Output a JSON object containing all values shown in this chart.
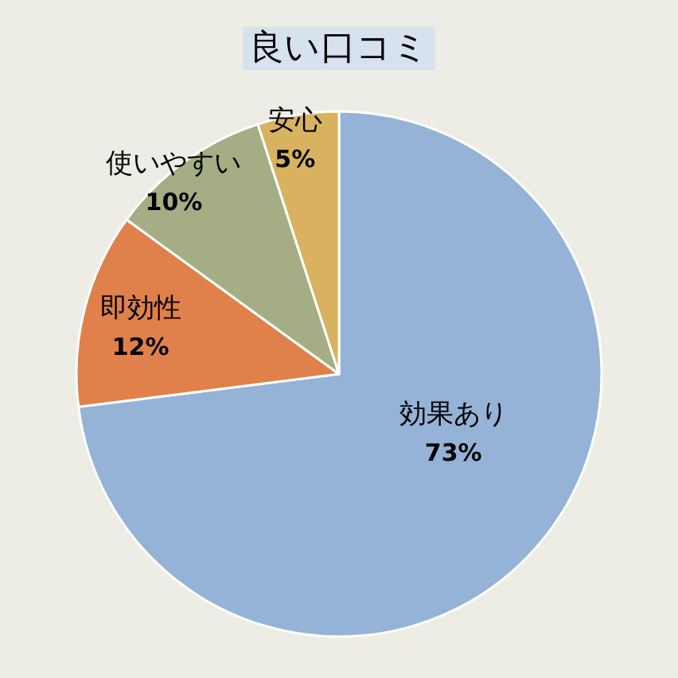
{
  "chart_data": {
    "type": "pie",
    "title": "良い口コミ",
    "categories": [
      "効果あり",
      "即効性",
      "使いやすい",
      "安心"
    ],
    "values": [
      73,
      12,
      10,
      5
    ],
    "value_labels": [
      "73%",
      "12%",
      "10%",
      "5%"
    ],
    "colors": [
      "#95b3d7",
      "#e0804a",
      "#a5ad84",
      "#d9b25f"
    ]
  }
}
